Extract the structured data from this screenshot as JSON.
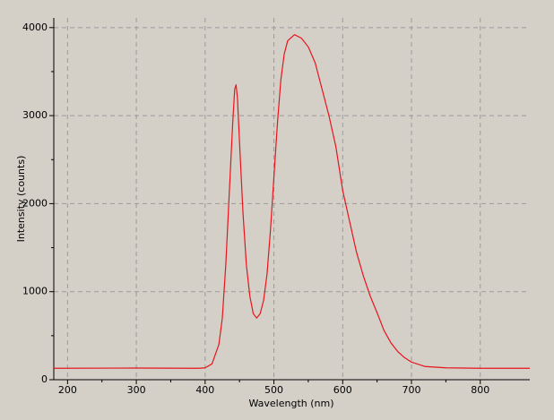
{
  "chart_data": {
    "type": "line",
    "xlabel": "Wavelength (nm)",
    "ylabel": "Intensity (counts)",
    "x": [
      180,
      300,
      390,
      400,
      410,
      420,
      425,
      430,
      435,
      440,
      443,
      445,
      447,
      450,
      455,
      460,
      465,
      470,
      475,
      480,
      485,
      490,
      495,
      500,
      505,
      510,
      515,
      520,
      530,
      540,
      550,
      560,
      570,
      580,
      590,
      600,
      610,
      620,
      630,
      640,
      650,
      660,
      670,
      680,
      690,
      700,
      720,
      750,
      800,
      872
    ],
    "series": [
      {
        "color": "#e8141c",
        "values": [
          130,
          132,
          130,
          135,
          180,
          400,
          700,
          1300,
          2100,
          2900,
          3300,
          3350,
          3200,
          2700,
          1900,
          1300,
          950,
          750,
          700,
          750,
          900,
          1200,
          1700,
          2300,
          2900,
          3400,
          3700,
          3850,
          3920,
          3880,
          3780,
          3600,
          3300,
          3000,
          2650,
          2150,
          1800,
          1450,
          1180,
          950,
          760,
          560,
          420,
          320,
          250,
          200,
          150,
          135,
          130,
          130
        ]
      }
    ],
    "xlim": [
      180,
      872
    ],
    "xticks": [
      200,
      300,
      400,
      500,
      600,
      700,
      800
    ],
    "ylim": [
      0,
      4110
    ],
    "yticks": [
      0,
      1000,
      2000,
      3000,
      4000
    ],
    "grid": true
  }
}
